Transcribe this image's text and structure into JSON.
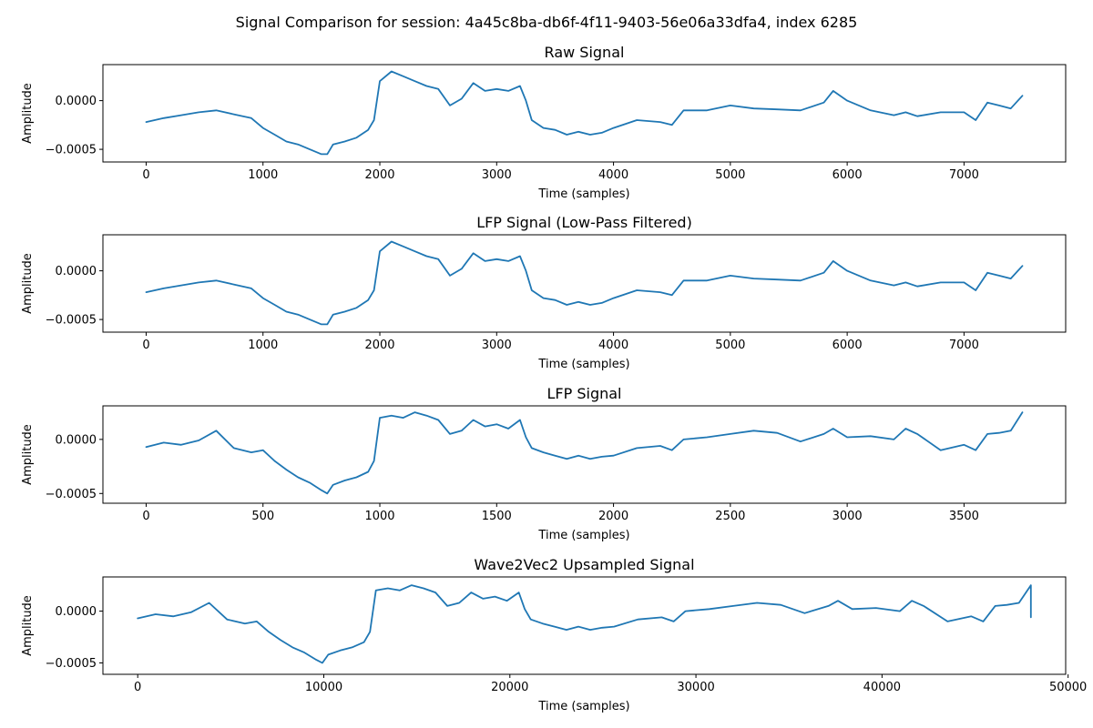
{
  "figure": {
    "suptitle": "Signal Comparison for session: 4a45c8ba-db6f-4f11-9403-56e06a33dfa4, index 6285",
    "series_color": "#1f77b4"
  },
  "chart_data": [
    {
      "type": "line",
      "title": "Raw Signal",
      "xlabel": "Time (samples)",
      "ylabel": "Amplitude",
      "xlim": [
        -370,
        7870
      ],
      "ylim": [
        -0.00063,
        0.00037
      ],
      "xticks": [
        0,
        1000,
        2000,
        3000,
        4000,
        5000,
        6000,
        7000
      ],
      "xtick_labels": [
        "0",
        "1000",
        "2000",
        "3000",
        "4000",
        "5000",
        "6000",
        "7000"
      ],
      "yticks": [
        0.0,
        -0.0005
      ],
      "ytick_labels": [
        "0.0000",
        "−0.0005"
      ],
      "grid": false,
      "series": [
        {
          "x": [
            0,
            150,
            300,
            450,
            600,
            750,
            900,
            1000,
            1100,
            1200,
            1300,
            1400,
            1500,
            1550,
            1600,
            1700,
            1800,
            1900,
            1950,
            2000,
            2100,
            2200,
            2300,
            2400,
            2500,
            2600,
            2700,
            2800,
            2900,
            3000,
            3100,
            3200,
            3250,
            3300,
            3400,
            3500,
            3600,
            3700,
            3800,
            3900,
            4000,
            4200,
            4400,
            4500,
            4600,
            4800,
            5000,
            5200,
            5400,
            5600,
            5800,
            5880,
            6000,
            6200,
            6400,
            6500,
            6600,
            6800,
            7000,
            7100,
            7200,
            7300,
            7400,
            7500
          ],
          "y": [
            -0.00022,
            -0.00018,
            -0.00015,
            -0.00012,
            -0.0001,
            -0.00014,
            -0.00018,
            -0.00028,
            -0.00035,
            -0.00042,
            -0.00045,
            -0.0005,
            -0.00055,
            -0.00055,
            -0.00045,
            -0.00042,
            -0.00038,
            -0.0003,
            -0.0002,
            0.0002,
            0.0003,
            0.00025,
            0.0002,
            0.00015,
            0.00012,
            -5e-05,
            2e-05,
            0.00018,
            0.0001,
            0.00012,
            0.0001,
            0.00015,
            0.0,
            -0.0002,
            -0.00028,
            -0.0003,
            -0.00035,
            -0.00032,
            -0.00035,
            -0.00033,
            -0.00028,
            -0.0002,
            -0.00022,
            -0.00025,
            -0.0001,
            -0.0001,
            -5e-05,
            -8e-05,
            -9e-05,
            -0.0001,
            -2e-05,
            0.0001,
            0.0,
            -0.0001,
            -0.00015,
            -0.00012,
            -0.00016,
            -0.00012,
            -0.00012,
            -0.0002,
            -2e-05,
            -5e-05,
            -8e-05,
            5e-05
          ]
        }
      ]
    },
    {
      "type": "line",
      "title": "LFP Signal (Low-Pass Filtered)",
      "xlabel": "Time (samples)",
      "ylabel": "Amplitude",
      "xlim": [
        -370,
        7870
      ],
      "ylim": [
        -0.00063,
        0.00037
      ],
      "xticks": [
        0,
        1000,
        2000,
        3000,
        4000,
        5000,
        6000,
        7000
      ],
      "xtick_labels": [
        "0",
        "1000",
        "2000",
        "3000",
        "4000",
        "5000",
        "6000",
        "7000"
      ],
      "yticks": [
        0.0,
        -0.0005
      ],
      "ytick_labels": [
        "0.0000",
        "−0.0005"
      ],
      "grid": false,
      "series": [
        {
          "x": [
            0,
            150,
            300,
            450,
            600,
            750,
            900,
            1000,
            1100,
            1200,
            1300,
            1400,
            1500,
            1550,
            1600,
            1700,
            1800,
            1900,
            1950,
            2000,
            2100,
            2200,
            2300,
            2400,
            2500,
            2600,
            2700,
            2800,
            2900,
            3000,
            3100,
            3200,
            3250,
            3300,
            3400,
            3500,
            3600,
            3700,
            3800,
            3900,
            4000,
            4200,
            4400,
            4500,
            4600,
            4800,
            5000,
            5200,
            5400,
            5600,
            5800,
            5880,
            6000,
            6200,
            6400,
            6500,
            6600,
            6800,
            7000,
            7100,
            7200,
            7300,
            7400,
            7500
          ],
          "y": [
            -0.00022,
            -0.00018,
            -0.00015,
            -0.00012,
            -0.0001,
            -0.00014,
            -0.00018,
            -0.00028,
            -0.00035,
            -0.00042,
            -0.00045,
            -0.0005,
            -0.00055,
            -0.00055,
            -0.00045,
            -0.00042,
            -0.00038,
            -0.0003,
            -0.0002,
            0.0002,
            0.0003,
            0.00025,
            0.0002,
            0.00015,
            0.00012,
            -5e-05,
            2e-05,
            0.00018,
            0.0001,
            0.00012,
            0.0001,
            0.00015,
            0.0,
            -0.0002,
            -0.00028,
            -0.0003,
            -0.00035,
            -0.00032,
            -0.00035,
            -0.00033,
            -0.00028,
            -0.0002,
            -0.00022,
            -0.00025,
            -0.0001,
            -0.0001,
            -5e-05,
            -8e-05,
            -9e-05,
            -0.0001,
            -2e-05,
            0.0001,
            0.0,
            -0.0001,
            -0.00015,
            -0.00012,
            -0.00016,
            -0.00012,
            -0.00012,
            -0.0002,
            -2e-05,
            -5e-05,
            -8e-05,
            5e-05
          ]
        }
      ]
    },
    {
      "type": "line",
      "title": "LFP Signal",
      "xlabel": "Time (samples)",
      "ylabel": "Amplitude",
      "xlim": [
        -185,
        3935
      ],
      "ylim": [
        -0.00059,
        0.00031
      ],
      "xticks": [
        0,
        500,
        1000,
        1500,
        2000,
        2500,
        3000,
        3500
      ],
      "xtick_labels": [
        "0",
        "500",
        "1000",
        "1500",
        "2000",
        "2500",
        "3000",
        "3500"
      ],
      "yticks": [
        0.0,
        -0.0005
      ],
      "ytick_labels": [
        "0.0000",
        "−0.0005"
      ],
      "grid": false,
      "series": [
        {
          "x": [
            0,
            75,
            150,
            225,
            300,
            375,
            450,
            500,
            550,
            600,
            650,
            700,
            750,
            775,
            800,
            850,
            900,
            950,
            975,
            1000,
            1050,
            1100,
            1150,
            1200,
            1250,
            1300,
            1350,
            1400,
            1450,
            1500,
            1550,
            1600,
            1625,
            1650,
            1700,
            1750,
            1800,
            1850,
            1900,
            1950,
            2000,
            2100,
            2200,
            2250,
            2300,
            2400,
            2500,
            2600,
            2700,
            2800,
            2900,
            2940,
            3000,
            3100,
            3200,
            3250,
            3300,
            3400,
            3500,
            3550,
            3600,
            3650,
            3700,
            3750
          ],
          "y": [
            -7e-05,
            -3e-05,
            -5e-05,
            -1e-05,
            8e-05,
            -8e-05,
            -0.00012,
            -0.0001,
            -0.0002,
            -0.00028,
            -0.00035,
            -0.0004,
            -0.00047,
            -0.0005,
            -0.00042,
            -0.00038,
            -0.00035,
            -0.0003,
            -0.0002,
            0.0002,
            0.00022,
            0.0002,
            0.00025,
            0.00022,
            0.00018,
            5e-05,
            8e-05,
            0.00018,
            0.00012,
            0.00014,
            0.0001,
            0.00018,
            2e-05,
            -8e-05,
            -0.00012,
            -0.00015,
            -0.00018,
            -0.00015,
            -0.00018,
            -0.00016,
            -0.00015,
            -8e-05,
            -6e-05,
            -0.0001,
            0.0,
            2e-05,
            5e-05,
            8e-05,
            6e-05,
            -2e-05,
            5e-05,
            0.0001,
            2e-05,
            3e-05,
            0.0,
            0.0001,
            5e-05,
            -0.0001,
            -5e-05,
            -0.0001,
            5e-05,
            6e-05,
            8e-05,
            0.00025
          ]
        }
      ]
    },
    {
      "type": "line",
      "title": "Wave2Vec2 Upsampled Signal",
      "xlabel": "Time (samples)",
      "ylabel": "Amplitude",
      "xlim": [
        -1870,
        49870
      ],
      "ylim": [
        -0.00061,
        0.00033
      ],
      "xticks": [
        0,
        10000,
        20000,
        30000,
        40000,
        50000
      ],
      "xtick_labels": [
        "0",
        "10000",
        "20000",
        "30000",
        "40000",
        "50000"
      ],
      "yticks": [
        0.0,
        -0.0005
      ],
      "ytick_labels": [
        "0.0000",
        "−0.0005"
      ],
      "grid": false,
      "series": [
        {
          "x": [
            0,
            960,
            1920,
            2880,
            3840,
            4800,
            5760,
            6400,
            7040,
            7680,
            8320,
            8960,
            9600,
            9920,
            10240,
            10880,
            11520,
            12160,
            12480,
            12800,
            13440,
            14080,
            14720,
            15360,
            16000,
            16640,
            17280,
            17920,
            18560,
            19200,
            19840,
            20480,
            20800,
            21120,
            21760,
            22400,
            23040,
            23680,
            24320,
            24960,
            25600,
            26880,
            28160,
            28800,
            29440,
            30720,
            32000,
            33280,
            34560,
            35840,
            37120,
            37632,
            38400,
            39680,
            40960,
            41600,
            42240,
            43520,
            44800,
            45440,
            46080,
            46720,
            47360,
            48000,
            48000
          ],
          "y": [
            -7e-05,
            -3e-05,
            -5e-05,
            -1e-05,
            8e-05,
            -8e-05,
            -0.00012,
            -0.0001,
            -0.0002,
            -0.00028,
            -0.00035,
            -0.0004,
            -0.00047,
            -0.0005,
            -0.00042,
            -0.00038,
            -0.00035,
            -0.0003,
            -0.0002,
            0.0002,
            0.00022,
            0.0002,
            0.00025,
            0.00022,
            0.00018,
            5e-05,
            8e-05,
            0.00018,
            0.00012,
            0.00014,
            0.0001,
            0.00018,
            2e-05,
            -8e-05,
            -0.00012,
            -0.00015,
            -0.00018,
            -0.00015,
            -0.00018,
            -0.00016,
            -0.00015,
            -8e-05,
            -6e-05,
            -0.0001,
            0.0,
            2e-05,
            5e-05,
            8e-05,
            6e-05,
            -2e-05,
            5e-05,
            0.0001,
            2e-05,
            3e-05,
            0.0,
            0.0001,
            5e-05,
            -0.0001,
            -5e-05,
            -0.0001,
            5e-05,
            6e-05,
            8e-05,
            0.00025,
            -6e-05
          ]
        }
      ]
    }
  ]
}
